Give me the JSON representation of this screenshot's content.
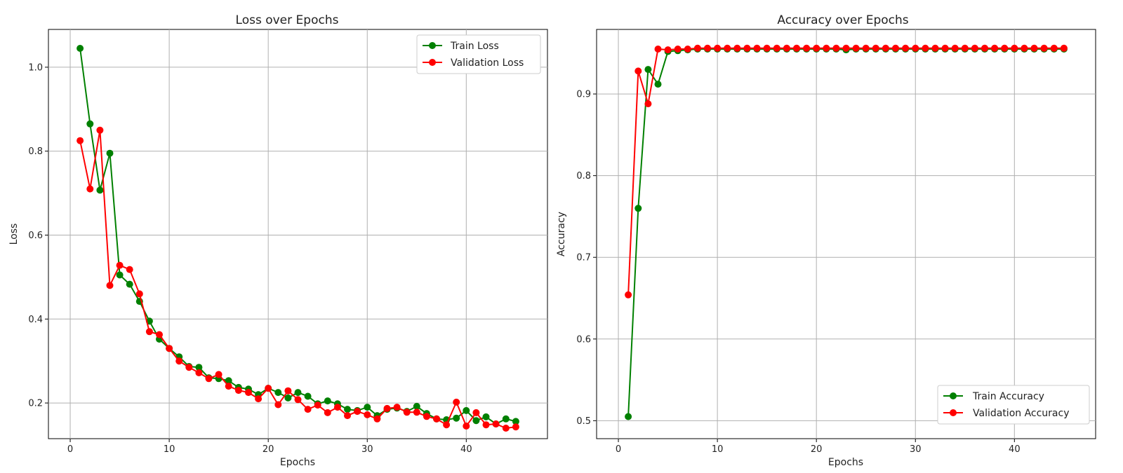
{
  "chart_data": [
    {
      "type": "line",
      "title": "Loss over Epochs",
      "xlabel": "Epochs",
      "ylabel": "Loss",
      "xlim": [
        -2.2,
        48.2
      ],
      "ylim": [
        0.115,
        1.09
      ],
      "xticks": [
        0,
        10,
        20,
        30,
        40
      ],
      "yticks": [
        0.2,
        0.4,
        0.6,
        0.8,
        1.0
      ],
      "xtick_labels": [
        "0",
        "10",
        "20",
        "30",
        "40"
      ],
      "ytick_labels": [
        "0.2",
        "0.4",
        "0.6",
        "0.8",
        "1.0"
      ],
      "grid": true,
      "legend_position": "top-right",
      "x": [
        1,
        2,
        3,
        4,
        5,
        6,
        7,
        8,
        9,
        10,
        11,
        12,
        13,
        14,
        15,
        16,
        17,
        18,
        19,
        20,
        21,
        22,
        23,
        24,
        25,
        26,
        27,
        28,
        29,
        30,
        31,
        32,
        33,
        34,
        35,
        36,
        37,
        38,
        39,
        40,
        41,
        42,
        43,
        44,
        45
      ],
      "series": [
        {
          "name": "Train Loss",
          "color": "#008000",
          "values": [
            1.045,
            0.865,
            0.707,
            0.795,
            0.505,
            0.483,
            0.442,
            0.395,
            0.352,
            0.33,
            0.31,
            0.287,
            0.285,
            0.26,
            0.258,
            0.253,
            0.237,
            0.233,
            0.22,
            0.235,
            0.225,
            0.212,
            0.225,
            0.216,
            0.198,
            0.205,
            0.198,
            0.185,
            0.182,
            0.19,
            0.17,
            0.185,
            0.188,
            0.18,
            0.192,
            0.175,
            0.162,
            0.16,
            0.164,
            0.182,
            0.158,
            0.167,
            0.15,
            0.162,
            0.156
          ]
        },
        {
          "name": "Validation Loss",
          "color": "#ff0000",
          "values": [
            0.825,
            0.71,
            0.85,
            0.48,
            0.528,
            0.518,
            0.46,
            0.37,
            0.363,
            0.33,
            0.3,
            0.285,
            0.272,
            0.258,
            0.268,
            0.24,
            0.23,
            0.225,
            0.21,
            0.235,
            0.196,
            0.229,
            0.208,
            0.185,
            0.195,
            0.177,
            0.19,
            0.17,
            0.18,
            0.172,
            0.162,
            0.187,
            0.19,
            0.178,
            0.178,
            0.168,
            0.162,
            0.148,
            0.202,
            0.145,
            0.177,
            0.148,
            0.15,
            0.14,
            0.143
          ]
        }
      ]
    },
    {
      "type": "line",
      "title": "Accuracy over Epochs",
      "xlabel": "Epochs",
      "ylabel": "Accuracy",
      "xlim": [
        -2.2,
        48.2
      ],
      "ylim": [
        0.478,
        0.979
      ],
      "xticks": [
        0,
        10,
        20,
        30,
        40
      ],
      "yticks": [
        0.5,
        0.6,
        0.7,
        0.8,
        0.9
      ],
      "xtick_labels": [
        "0",
        "10",
        "20",
        "30",
        "40"
      ],
      "ytick_labels": [
        "0.5",
        "0.6",
        "0.7",
        "0.8",
        "0.9"
      ],
      "grid": true,
      "legend_position": "bottom-right",
      "x": [
        1,
        2,
        3,
        4,
        5,
        6,
        7,
        8,
        9,
        10,
        11,
        12,
        13,
        14,
        15,
        16,
        17,
        18,
        19,
        20,
        21,
        22,
        23,
        24,
        25,
        26,
        27,
        28,
        29,
        30,
        31,
        32,
        33,
        34,
        35,
        36,
        37,
        38,
        39,
        40,
        41,
        42,
        43,
        44,
        45
      ],
      "series": [
        {
          "name": "Train Accuracy",
          "color": "#008000",
          "values": [
            0.505,
            0.76,
            0.93,
            0.912,
            0.952,
            0.953,
            0.954,
            0.955,
            0.955,
            0.955,
            0.955,
            0.955,
            0.955,
            0.955,
            0.955,
            0.955,
            0.955,
            0.955,
            0.955,
            0.955,
            0.955,
            0.955,
            0.954,
            0.955,
            0.955,
            0.955,
            0.955,
            0.955,
            0.955,
            0.955,
            0.955,
            0.955,
            0.955,
            0.955,
            0.955,
            0.955,
            0.955,
            0.955,
            0.955,
            0.955,
            0.955,
            0.955,
            0.955,
            0.955,
            0.955
          ]
        },
        {
          "name": "Validation Accuracy",
          "color": "#ff0000",
          "values": [
            0.654,
            0.928,
            0.888,
            0.955,
            0.954,
            0.955,
            0.955,
            0.956,
            0.956,
            0.956,
            0.956,
            0.956,
            0.956,
            0.956,
            0.956,
            0.956,
            0.956,
            0.956,
            0.956,
            0.956,
            0.956,
            0.956,
            0.956,
            0.956,
            0.956,
            0.956,
            0.956,
            0.956,
            0.956,
            0.956,
            0.956,
            0.956,
            0.956,
            0.956,
            0.956,
            0.956,
            0.956,
            0.956,
            0.956,
            0.956,
            0.956,
            0.956,
            0.956,
            0.956,
            0.956
          ]
        }
      ]
    }
  ]
}
